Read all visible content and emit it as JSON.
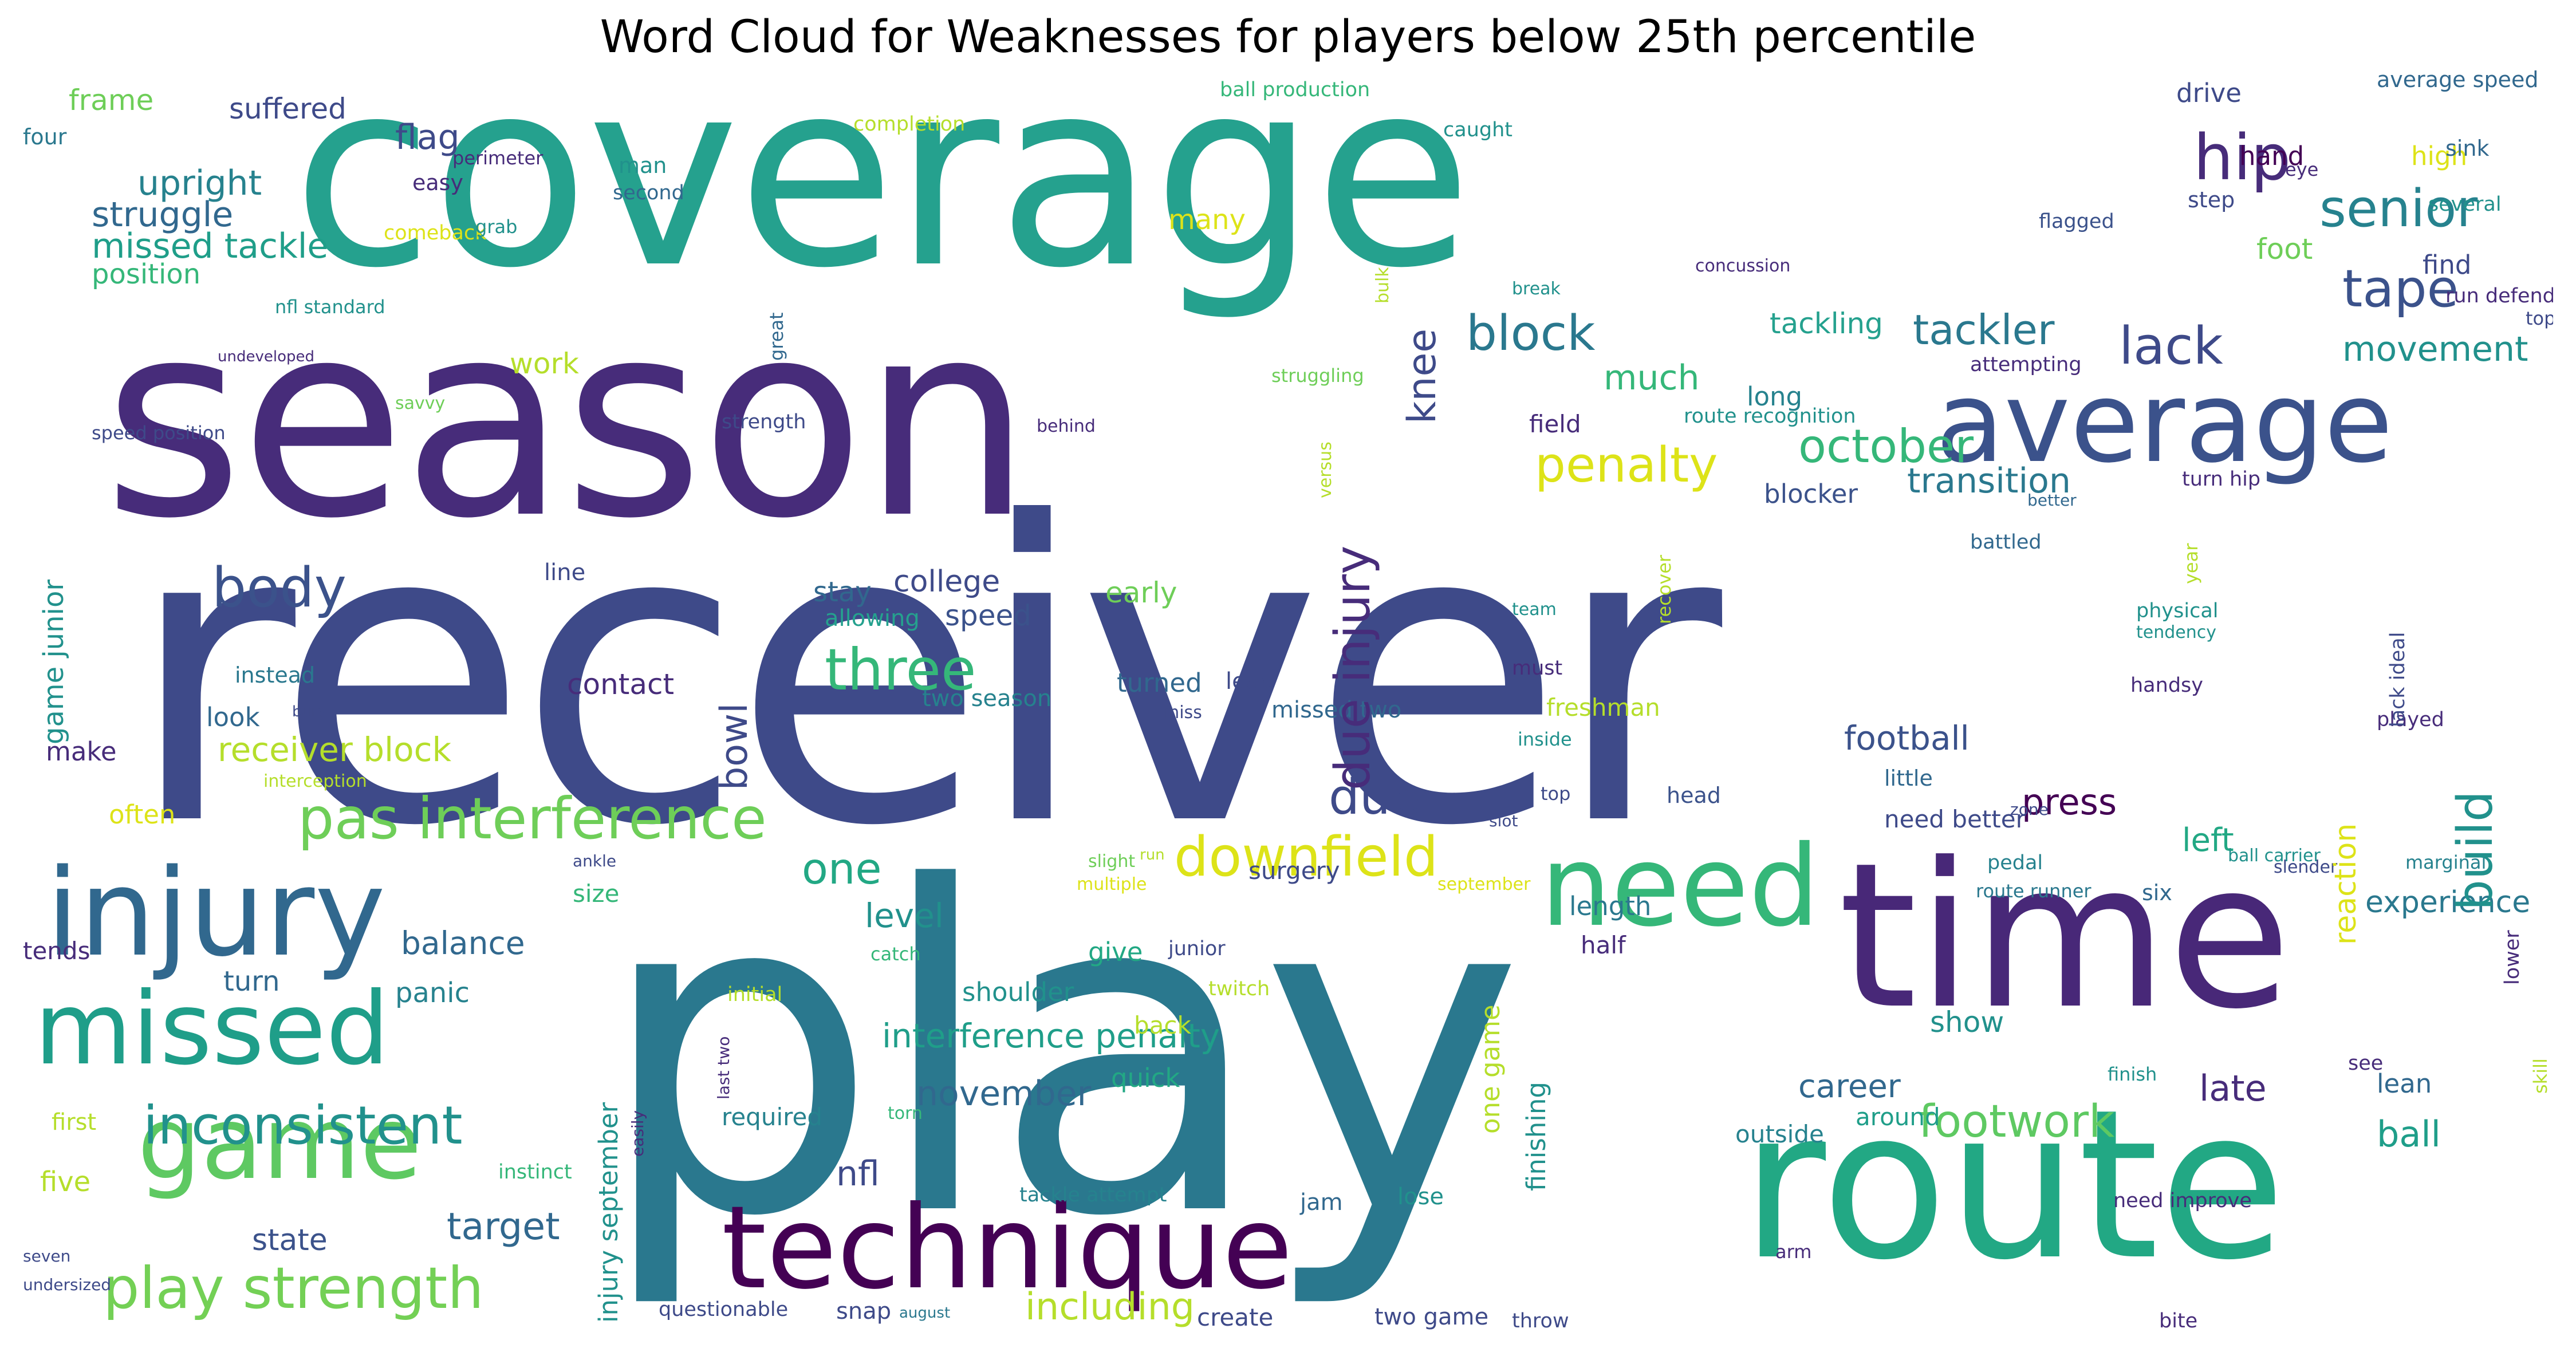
{
  "title": "Word Cloud for Weaknesses for players below 25th percentile",
  "palette_note": "viridis",
  "words": [
    {
      "text": "receiver",
      "color": "#3e4a89"
    },
    {
      "text": "play",
      "color": "#2a788e"
    },
    {
      "text": "season",
      "color": "#472c7a"
    },
    {
      "text": "coverage",
      "color": "#25a18e"
    },
    {
      "text": "time",
      "color": "#482878"
    },
    {
      "text": "route",
      "color": "#22a884"
    },
    {
      "text": "average",
      "color": "#3b528b"
    },
    {
      "text": "technique",
      "color": "#440154"
    },
    {
      "text": "injury",
      "color": "#31688e"
    },
    {
      "text": "need",
      "color": "#35b779"
    },
    {
      "text": "missed",
      "color": "#1f9e89"
    },
    {
      "text": "game",
      "color": "#5ec962"
    },
    {
      "text": "pas interference",
      "color": "#6ece58"
    },
    {
      "text": "inconsistent",
      "color": "#21918c"
    },
    {
      "text": "play strength",
      "color": "#73d055"
    },
    {
      "text": "three",
      "color": "#35b779"
    },
    {
      "text": "downfield",
      "color": "#dde318"
    },
    {
      "text": "senior",
      "color": "#26828e"
    },
    {
      "text": "tape",
      "color": "#3b528b"
    },
    {
      "text": "lack",
      "color": "#3e4a89"
    },
    {
      "text": "hip",
      "color": "#472c7a"
    },
    {
      "text": "body",
      "color": "#3b528b"
    },
    {
      "text": "block",
      "color": "#2a788e"
    },
    {
      "text": "penalty",
      "color": "#dde318"
    },
    {
      "text": "october",
      "color": "#35b779"
    },
    {
      "text": "tackler",
      "color": "#2a788e"
    },
    {
      "text": "movement",
      "color": "#21918c"
    },
    {
      "text": "transition",
      "color": "#2a788e"
    },
    {
      "text": "footwork",
      "color": "#5ec962"
    },
    {
      "text": "including",
      "color": "#b5de2b"
    },
    {
      "text": "one",
      "color": "#22a884"
    },
    {
      "text": "due",
      "color": "#3e4a89"
    },
    {
      "text": "flag",
      "color": "#3e4a89"
    },
    {
      "text": "upright",
      "color": "#26828e"
    },
    {
      "text": "struggle",
      "color": "#31688e"
    },
    {
      "text": "missed tackle",
      "color": "#1f9e89"
    },
    {
      "text": "frame",
      "color": "#6ece58"
    },
    {
      "text": "suffered",
      "color": "#3e4a89"
    },
    {
      "text": "four",
      "color": "#2a788e"
    },
    {
      "text": "position",
      "color": "#35b779"
    },
    {
      "text": "target",
      "color": "#31688e"
    },
    {
      "text": "state",
      "color": "#3b528b"
    },
    {
      "text": "receiver block",
      "color": "#b5de2b"
    },
    {
      "text": "level",
      "color": "#21918c"
    },
    {
      "text": "interference penalty",
      "color": "#1f9e89"
    },
    {
      "text": "nfl",
      "color": "#3e4a89"
    },
    {
      "text": "november",
      "color": "#31688e"
    },
    {
      "text": "college",
      "color": "#3e4a89"
    },
    {
      "text": "speed",
      "color": "#3b528b"
    },
    {
      "text": "career",
      "color": "#31688e"
    },
    {
      "text": "ball",
      "color": "#1f9e89"
    },
    {
      "text": "late",
      "color": "#472c7a"
    },
    {
      "text": "press",
      "color": "#440154"
    },
    {
      "text": "left",
      "color": "#22a884"
    },
    {
      "text": "experience",
      "color": "#2a788e"
    },
    {
      "text": "football",
      "color": "#3b528b"
    },
    {
      "text": "foot",
      "color": "#6ece58"
    },
    {
      "text": "find",
      "color": "#3e4a89"
    },
    {
      "text": "hand",
      "color": "#440154"
    },
    {
      "text": "high",
      "color": "#dde318"
    },
    {
      "text": "drive",
      "color": "#3e4a89"
    },
    {
      "text": "much",
      "color": "#35b779"
    },
    {
      "text": "field",
      "color": "#472c7a"
    },
    {
      "text": "long",
      "color": "#26828e"
    },
    {
      "text": "tackling",
      "color": "#25a18e"
    },
    {
      "text": "blocker",
      "color": "#3b528b"
    },
    {
      "text": "stay",
      "color": "#31688e"
    },
    {
      "text": "early",
      "color": "#6ece58"
    },
    {
      "text": "work",
      "color": "#b5de2b"
    },
    {
      "text": "balance",
      "color": "#31688e"
    },
    {
      "text": "turn",
      "color": "#31688e"
    },
    {
      "text": "panic",
      "color": "#26828e"
    },
    {
      "text": "often",
      "color": "#dde318"
    },
    {
      "text": "look",
      "color": "#31688e"
    },
    {
      "text": "make",
      "color": "#472c7a"
    },
    {
      "text": "size",
      "color": "#35b779"
    },
    {
      "text": "contact",
      "color": "#472c7a"
    },
    {
      "text": "turned",
      "color": "#31688e"
    },
    {
      "text": "shoulder",
      "color": "#21918c"
    },
    {
      "text": "back",
      "color": "#b5de2b"
    },
    {
      "text": "quick",
      "color": "#22a884"
    },
    {
      "text": "give",
      "color": "#22a884"
    },
    {
      "text": "show",
      "color": "#21918c"
    },
    {
      "text": "length",
      "color": "#2a788e"
    },
    {
      "text": "half",
      "color": "#472c7a"
    },
    {
      "text": "outside",
      "color": "#26828e"
    },
    {
      "text": "around",
      "color": "#1f9e89"
    },
    {
      "text": "lean",
      "color": "#31688e"
    },
    {
      "text": "tends",
      "color": "#472c7a"
    },
    {
      "text": "first",
      "color": "#b5de2b"
    },
    {
      "text": "five",
      "color": "#b5de2b"
    },
    {
      "text": "surgery",
      "color": "#3e4a89"
    },
    {
      "text": "snap",
      "color": "#3e4a89"
    },
    {
      "text": "create",
      "color": "#3e4a89"
    },
    {
      "text": "two game",
      "color": "#3e4a89"
    },
    {
      "text": "jam",
      "color": "#31688e"
    },
    {
      "text": "lose",
      "color": "#21918c"
    },
    {
      "text": "required",
      "color": "#26828e"
    },
    {
      "text": "freshman",
      "color": "#b5de2b"
    },
    {
      "text": "two season",
      "color": "#26828e"
    },
    {
      "text": "missed two",
      "color": "#31688e"
    },
    {
      "text": "lead",
      "color": "#3e4a89"
    },
    {
      "text": "head",
      "color": "#3b528b"
    },
    {
      "text": "need better",
      "color": "#3e4a89"
    },
    {
      "text": "little",
      "color": "#31688e"
    },
    {
      "text": "many",
      "color": "#dde318"
    },
    {
      "text": "line",
      "color": "#3e4a89"
    },
    {
      "text": "allowing",
      "color": "#25a18e"
    },
    {
      "text": "instead",
      "color": "#2a788e"
    },
    {
      "text": "six",
      "color": "#31688e"
    },
    {
      "text": "pedal",
      "color": "#26828e"
    },
    {
      "text": "route runner",
      "color": "#2a788e"
    },
    {
      "text": "step",
      "color": "#3e4a89"
    },
    {
      "text": "several",
      "color": "#21918c"
    },
    {
      "text": "flagged",
      "color": "#3b528b"
    },
    {
      "text": "eye",
      "color": "#472c7a"
    },
    {
      "text": "sink",
      "color": "#31688e"
    },
    {
      "text": "average speed",
      "color": "#31688e"
    },
    {
      "text": "run defender",
      "color": "#472c7a"
    },
    {
      "text": "top end",
      "color": "#3e4a89"
    },
    {
      "text": "attempting",
      "color": "#472c7a"
    },
    {
      "text": "turn hip",
      "color": "#472c7a"
    },
    {
      "text": "better",
      "color": "#31688e"
    },
    {
      "text": "battled",
      "color": "#31688e"
    },
    {
      "text": "played",
      "color": "#472c7a"
    },
    {
      "text": "marginal",
      "color": "#26828e"
    },
    {
      "text": "slender",
      "color": "#3e4a89"
    },
    {
      "text": "ball carrier",
      "color": "#21918c"
    },
    {
      "text": "see",
      "color": "#472c7a"
    },
    {
      "text": "finish",
      "color": "#21918c"
    },
    {
      "text": "need improve",
      "color": "#472c7a"
    },
    {
      "text": "arm",
      "color": "#472c7a"
    },
    {
      "text": "bite",
      "color": "#472c7a"
    },
    {
      "text": "throw",
      "color": "#3e4a89"
    },
    {
      "text": "questionable",
      "color": "#3e4a89"
    },
    {
      "text": "handsy",
      "color": "#472c7a"
    },
    {
      "text": "physical",
      "color": "#21918c"
    },
    {
      "text": "tendency",
      "color": "#21918c"
    },
    {
      "text": "team",
      "color": "#21918c"
    },
    {
      "text": "must",
      "color": "#472c7a"
    },
    {
      "text": "inside",
      "color": "#21918c"
    },
    {
      "text": "top",
      "color": "#3e4a89"
    },
    {
      "text": "slot",
      "color": "#3e4a89"
    },
    {
      "text": "zone",
      "color": "#3e4a89"
    },
    {
      "text": "twitch",
      "color": "#b5de2b"
    },
    {
      "text": "junior",
      "color": "#3e4a89"
    },
    {
      "text": "september",
      "color": "#dde318"
    },
    {
      "text": "run",
      "color": "#b5de2b"
    },
    {
      "text": "multiple",
      "color": "#dde318"
    },
    {
      "text": "slight",
      "color": "#6ece58"
    },
    {
      "text": "catch",
      "color": "#35b779"
    },
    {
      "text": "initial",
      "color": "#b5de2b"
    },
    {
      "text": "torn",
      "color": "#35b779"
    },
    {
      "text": "tackle attempt",
      "color": "#26828e"
    },
    {
      "text": "instinct",
      "color": "#35b779"
    },
    {
      "text": "august",
      "color": "#2a788e"
    },
    {
      "text": "miss",
      "color": "#3e4a89"
    },
    {
      "text": "burst",
      "color": "#3e4a89"
    },
    {
      "text": "interception",
      "color": "#b5de2b"
    },
    {
      "text": "ankle",
      "color": "#3e4a89"
    },
    {
      "text": "seven",
      "color": "#3e4a89"
    },
    {
      "text": "undersized",
      "color": "#3e4a89"
    },
    {
      "text": "speed position",
      "color": "#3e4a89"
    },
    {
      "text": "undeveloped",
      "color": "#472c7a"
    },
    {
      "text": "nfl standard",
      "color": "#21918c"
    },
    {
      "text": "savvy",
      "color": "#6ece58"
    },
    {
      "text": "strength",
      "color": "#3e4a89"
    },
    {
      "text": "behind",
      "color": "#472c7a"
    },
    {
      "text": "struggling",
      "color": "#6ece58"
    },
    {
      "text": "route recognition",
      "color": "#21918c"
    },
    {
      "text": "break",
      "color": "#21918c"
    },
    {
      "text": "concussion",
      "color": "#472c7a"
    },
    {
      "text": "caught",
      "color": "#21918c"
    },
    {
      "text": "completion",
      "color": "#b5de2b"
    },
    {
      "text": "ball production",
      "color": "#35b779"
    },
    {
      "text": "perimeter",
      "color": "#472c7a"
    },
    {
      "text": "easy",
      "color": "#472c7a"
    },
    {
      "text": "man",
      "color": "#21918c"
    },
    {
      "text": "second",
      "color": "#31688e"
    },
    {
      "text": "comeback",
      "color": "#dde318"
    },
    {
      "text": "grab",
      "color": "#21918c"
    },
    {
      "text": "game junior",
      "color": "#21918c"
    },
    {
      "text": "due injury",
      "color": "#472c7a"
    },
    {
      "text": "build",
      "color": "#21918c"
    },
    {
      "text": "knee",
      "color": "#3e4a89"
    },
    {
      "text": "bowl",
      "color": "#3e4a89"
    },
    {
      "text": "reaction",
      "color": "#dde318"
    },
    {
      "text": "one game",
      "color": "#b5de2b"
    },
    {
      "text": "finishing",
      "color": "#21918c"
    },
    {
      "text": "injury september",
      "color": "#21918c"
    },
    {
      "text": "year",
      "color": "#b5de2b"
    },
    {
      "text": "lack ideal",
      "color": "#3e4a89"
    },
    {
      "text": "lower",
      "color": "#472c7a"
    },
    {
      "text": "skill",
      "color": "#b5de2b"
    },
    {
      "text": "recover",
      "color": "#b5de2b"
    },
    {
      "text": "last two",
      "color": "#472c7a"
    },
    {
      "text": "easily",
      "color": "#472c7a"
    },
    {
      "text": "versus",
      "color": "#b5de2b"
    },
    {
      "text": "great",
      "color": "#31688e"
    },
    {
      "text": "bulk",
      "color": "#b5de2b"
    }
  ]
}
